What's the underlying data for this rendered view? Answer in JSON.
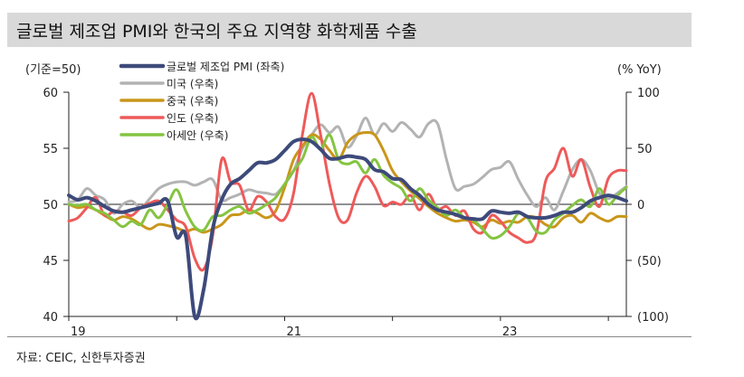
{
  "title": "글로벌 제조업 PMI와 한국의 주요 지역향 화학제품 수출",
  "source": "자료: CEIC, 신한투자증권",
  "chart_data": {
    "type": "line",
    "left_axis_label": "(기준=50)",
    "right_axis_label": "(% YoY)",
    "left_ylim": [
      40,
      60
    ],
    "left_ticks": [
      "60",
      "55",
      "50",
      "45",
      "40"
    ],
    "right_ylim": [
      -100,
      100
    ],
    "right_ticks": [
      "100",
      "50",
      "0",
      "(50)",
      "(100)"
    ],
    "x_ticks": [
      "19",
      "21",
      "23"
    ],
    "months": 63,
    "legend_placement": "top-center",
    "grid": false,
    "series": [
      {
        "name": "글로벌 제조업 PMI (좌축)",
        "axis": "left",
        "color": "#3d4a7a",
        "width": 4,
        "values": [
          50.8,
          50.4,
          50.6,
          50.3,
          49.8,
          49.4,
          49.3,
          49.5,
          49.7,
          49.9,
          50.1,
          50.3,
          47.1,
          47.2,
          39.8,
          42.4,
          47.8,
          50.4,
          51.8,
          52.3,
          53.0,
          53.7,
          53.7,
          54.0,
          54.8,
          55.6,
          55.8,
          55.6,
          54.9,
          54.1,
          54.1,
          54.3,
          54.2,
          54.0,
          53.1,
          52.9,
          52.3,
          52.2,
          51.4,
          50.8,
          50.0,
          49.5,
          49.3,
          49.1,
          48.8,
          48.7,
          48.7,
          49.4,
          49.3,
          49.2,
          49.3,
          48.9,
          48.8,
          48.8,
          49.0,
          49.3,
          49.3,
          49.7,
          50.3,
          50.6,
          50.8,
          50.6,
          50.3
        ]
      },
      {
        "name": "미국 (우축)",
        "axis": "right",
        "color": "#b3b3b3",
        "width": 3,
        "values": [
          2,
          4,
          14,
          8,
          4,
          -8,
          0,
          3,
          -3,
          5,
          14,
          18,
          20,
          20,
          17,
          20,
          22,
          4,
          6,
          9,
          13,
          11,
          10,
          9,
          18,
          30,
          50,
          62,
          71,
          64,
          69,
          51,
          61,
          77,
          62,
          72,
          65,
          73,
          67,
          60,
          72,
          72,
          40,
          14,
          16,
          18,
          24,
          31,
          33,
          38,
          22,
          8,
          -2,
          6,
          -5,
          12,
          31,
          40,
          30,
          10,
          5,
          10,
          16
        ]
      },
      {
        "name": "중국 (우축)",
        "axis": "right",
        "color": "#c9961a",
        "width": 3,
        "values": [
          0,
          -3,
          -2,
          -5,
          -10,
          -14,
          -11,
          -13,
          -18,
          -22,
          -18,
          -19,
          -21,
          -24,
          -22,
          -25,
          -22,
          -18,
          -10,
          -9,
          -5,
          -8,
          -12,
          -6,
          15,
          40,
          52,
          62,
          58,
          48,
          40,
          55,
          62,
          64,
          62,
          48,
          30,
          20,
          12,
          5,
          -2,
          -8,
          -12,
          -15,
          -14,
          -16,
          -20,
          -14,
          -17,
          -15,
          -16,
          -11,
          -12,
          -18,
          -20,
          -12,
          -10,
          -16,
          -8,
          -12,
          -15,
          -11,
          -11
        ]
      },
      {
        "name": "인도 (우축)",
        "axis": "right",
        "color": "#ee5a5a",
        "width": 3,
        "values": [
          -15,
          -12,
          -3,
          6,
          -10,
          -6,
          -7,
          -10,
          -3,
          1,
          3,
          -5,
          -14,
          -20,
          -48,
          -58,
          -28,
          40,
          20,
          17,
          -5,
          7,
          2,
          -11,
          -13,
          10,
          63,
          99,
          62,
          18,
          -12,
          -14,
          10,
          25,
          16,
          -1,
          2,
          0,
          8,
          -5,
          9,
          -4,
          -2,
          -10,
          -6,
          -22,
          -25,
          -10,
          -15,
          -25,
          -30,
          -34,
          -26,
          20,
          32,
          50,
          25,
          40,
          15,
          -2,
          23,
          30,
          30
        ]
      },
      {
        "name": "아세안 (우축)",
        "axis": "right",
        "color": "#84c441",
        "width": 3,
        "values": [
          0,
          -1,
          0,
          -5,
          -8,
          -14,
          -20,
          -15,
          -18,
          -5,
          -12,
          0,
          13,
          -6,
          -20,
          -23,
          -11,
          -10,
          -5,
          -2,
          -8,
          -5,
          0,
          6,
          18,
          30,
          41,
          60,
          49,
          62,
          40,
          36,
          38,
          28,
          40,
          26,
          19,
          14,
          3,
          14,
          4,
          -3,
          -10,
          -5,
          -12,
          -14,
          -22,
          -30,
          -28,
          -20,
          -8,
          -12,
          -24,
          -25,
          -14,
          -8,
          -1,
          4,
          -2,
          14,
          0,
          8,
          15
        ]
      }
    ]
  }
}
